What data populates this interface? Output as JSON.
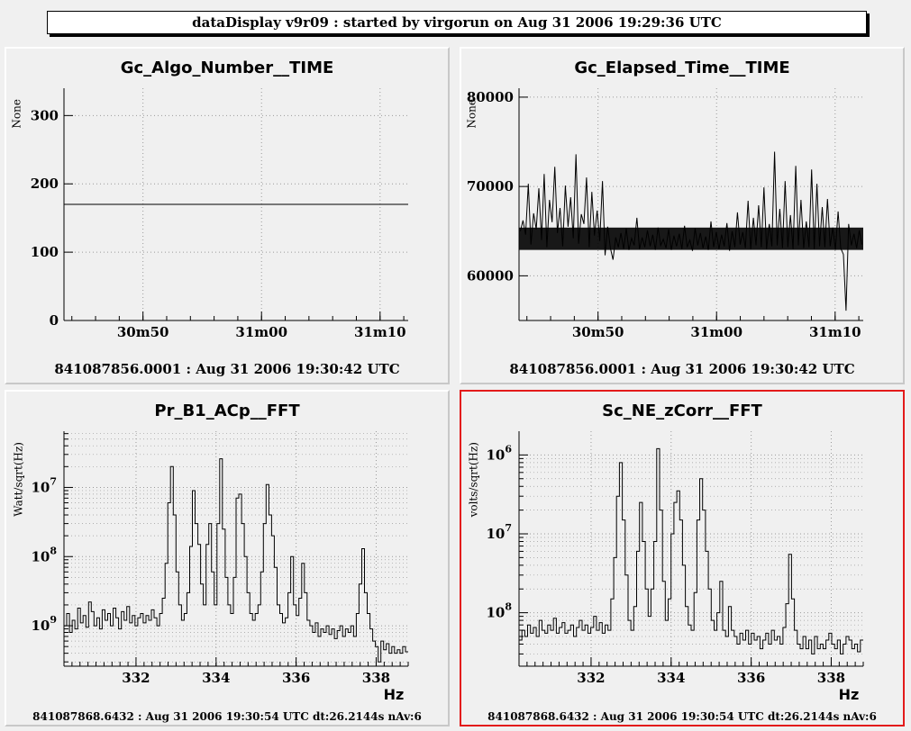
{
  "header": {
    "title": "dataDisplay v9r09 : started by virgorun on Aug 31 2006 19:29:36 UTC"
  },
  "colors": {
    "selected_border": "#e31b1b",
    "plot_line": "#000000",
    "grid": "#9a9a9a"
  },
  "chart_data": [
    {
      "id": "gc_algo",
      "type": "line",
      "title": "Gc_Algo_Number__TIME",
      "ylabel": "None",
      "xlabel": "",
      "x_ticks": [
        "30m50",
        "31m00",
        "31m10"
      ],
      "x_tick_pos": [
        0.2295,
        0.5739,
        0.9183
      ],
      "ylim": [
        0,
        340
      ],
      "y_ticks": [
        0,
        100,
        200,
        300
      ],
      "log_y": false,
      "grid": true,
      "series": [
        {
          "values": [
            170,
            170,
            170,
            170,
            170,
            170,
            170,
            170,
            170,
            170,
            170,
            170
          ]
        }
      ],
      "footer": "841087856.0001 : Aug 31 2006 19:30:42 UTC",
      "selected": false
    },
    {
      "id": "gc_elapsed",
      "type": "line",
      "title": "Gc_Elapsed_Time__TIME",
      "ylabel": "None",
      "xlabel": "",
      "x_ticks": [
        "30m50",
        "31m00",
        "31m10"
      ],
      "x_tick_pos": [
        0.2295,
        0.5739,
        0.9183
      ],
      "ylim": [
        55000,
        81000
      ],
      "y_ticks": [
        60000,
        70000,
        80000
      ],
      "y_tick_labels": [
        "60000",
        "70000",
        "80000"
      ],
      "log_y": false,
      "grid": true,
      "series": [
        {
          "name": "",
          "values": [
            65000,
            66200,
            64600,
            70300,
            63500,
            67000,
            65200,
            69800,
            64000,
            71400,
            63200,
            68500,
            66000,
            72200,
            64800,
            67600,
            63300,
            70100,
            65500,
            68800,
            64200,
            73600,
            63600,
            66900,
            65800,
            71000,
            63200,
            69400,
            64500,
            67300,
            63900,
            70600,
            62300,
            65500,
            63100,
            61800,
            64300,
            63200,
            64800,
            63000,
            65300,
            62900,
            64200,
            63400,
            66500,
            63000,
            64300,
            63200,
            65100,
            63300,
            64600,
            62900,
            65400,
            63400,
            64100,
            63100,
            65200,
            62900,
            64500,
            63300,
            64700,
            63000,
            65600,
            63200,
            64000,
            62800,
            65300,
            63400,
            64800,
            63100,
            64400,
            62900,
            66100,
            63200,
            64900,
            63000,
            64600,
            63300,
            65900,
            62800,
            65000,
            63200,
            67100,
            63500,
            64900,
            63100,
            68400,
            63000,
            66500,
            63400,
            67900,
            63200,
            69900,
            63000,
            65800,
            63300,
            73900,
            63400,
            67500,
            63100,
            70600,
            63200,
            66800,
            63000,
            72300,
            63400,
            68500,
            63100,
            66100,
            63200,
            71900,
            63000,
            70300,
            63300,
            67700,
            63200,
            68600,
            63300,
            65400,
            62900,
            67200,
            63100,
            62400,
            56100,
            65800,
            63400,
            64700,
            63100,
            65100,
            63500
          ]
        }
      ],
      "footer": "841087856.0001 : Aug 31 2006 19:30:42 UTC",
      "selected": false
    },
    {
      "id": "pr_b1",
      "type": "line",
      "title": "Pr_B1_ACp__FFT",
      "ylabel": "Watt/sqrt(Hz)",
      "xlabel": "Hz",
      "xlim": [
        330.2,
        338.8
      ],
      "x_ticks": [
        332,
        334,
        336,
        338
      ],
      "log_y": true,
      "ylim": [
        2.6e-10,
        6.5e-07
      ],
      "y_ticks": [
        1e-09,
        1e-08,
        1e-07
      ],
      "y_tick_labels": [
        {
          "base": "10",
          "exp": "9"
        },
        {
          "base": "10",
          "exp": "8"
        },
        {
          "base": "10",
          "exp": "7"
        }
      ],
      "grid": true,
      "series": [
        {
          "values": [
            1e-09,
            1.5e-09,
            8e-10,
            1.2e-09,
            9e-10,
            1.8e-09,
            1.1e-09,
            1.4e-09,
            9.5e-10,
            2.2e-09,
            1.6e-09,
            1e-09,
            1.3e-09,
            9e-10,
            1.7e-09,
            1.2e-09,
            1.5e-09,
            1e-09,
            1.8e-09,
            1.3e-09,
            9e-10,
            1.6e-09,
            1.2e-09,
            1.9e-09,
            1.1e-09,
            1.4e-09,
            1e-09,
            1.3e-09,
            1.5e-09,
            1.1e-09,
            1.4e-09,
            1.2e-09,
            1.7e-09,
            1.3e-09,
            1e-09,
            1.5e-09,
            2.5e-09,
            8e-09,
            6e-08,
            2e-07,
            4e-08,
            6e-09,
            2e-09,
            1.2e-09,
            1.5e-09,
            3e-09,
            1.4e-08,
            9e-08,
            3e-08,
            1.5e-08,
            4e-09,
            2e-09,
            1.5e-08,
            3e-08,
            6e-09,
            2e-09,
            3e-08,
            2.6e-07,
            2.5e-08,
            5e-09,
            2e-09,
            1.5e-09,
            5e-09,
            7e-08,
            8e-08,
            3e-08,
            1e-08,
            3e-09,
            1.5e-09,
            1.2e-09,
            1.5e-09,
            2e-09,
            6e-09,
            3e-08,
            1.1e-07,
            4e-08,
            2e-08,
            7e-09,
            2e-09,
            1.5e-09,
            1.1e-09,
            1.3e-09,
            3e-09,
            1e-08,
            2e-09,
            1.4e-09,
            2.5e-09,
            8e-09,
            3e-09,
            1.2e-09,
            1e-09,
            8e-10,
            1.1e-09,
            7e-10,
            9e-10,
            8e-10,
            1e-09,
            7.5e-10,
            9e-10,
            6.5e-10,
            8.5e-10,
            1e-09,
            7e-10,
            9e-10,
            8e-10,
            1e-09,
            7e-10,
            1.5e-09,
            4e-09,
            1.3e-08,
            3e-09,
            1.5e-09,
            9e-10,
            6e-10,
            5e-10,
            3e-10,
            6e-10,
            4.5e-10,
            5.5e-10,
            4e-10,
            5e-10,
            4e-10,
            4.5e-10,
            4e-10,
            5e-10,
            4.2e-10
          ]
        }
      ],
      "footer": "841087868.6432 : Aug 31 2006 19:30:54 UTC dt:26.2144s nAv:6",
      "selected": false
    },
    {
      "id": "sc_ne",
      "type": "line",
      "title": "Sc_NE_zCorr__FFT",
      "ylabel": "volts/sqrt(Hz)",
      "xlabel": "Hz",
      "xlim": [
        330.2,
        338.8
      ],
      "x_ticks": [
        332,
        334,
        336,
        338
      ],
      "log_y": true,
      "ylim": [
        2.1e-09,
        2e-06
      ],
      "y_ticks": [
        1e-08,
        1e-07,
        1e-06
      ],
      "y_tick_labels": [
        {
          "base": "10",
          "exp": "8"
        },
        {
          "base": "10",
          "exp": "7"
        },
        {
          "base": "10",
          "exp": "6"
        }
      ],
      "grid": true,
      "series": [
        {
          "values": [
            4.5e-09,
            6e-09,
            5e-09,
            7e-09,
            5.5e-09,
            6.5e-09,
            5e-09,
            8e-09,
            6e-09,
            5.5e-09,
            7e-09,
            6e-09,
            8.5e-09,
            5.5e-09,
            6.5e-09,
            7.5e-09,
            5.5e-09,
            6e-09,
            7e-09,
            5e-09,
            6.5e-09,
            8e-09,
            6e-09,
            7e-09,
            5.5e-09,
            6.5e-09,
            9e-09,
            6e-09,
            7.5e-09,
            5.5e-09,
            7e-09,
            6e-09,
            1.5e-08,
            5e-08,
            3e-07,
            8e-07,
            1.5e-07,
            3e-08,
            8e-09,
            6e-09,
            1.2e-08,
            6e-08,
            2.5e-07,
            8e-08,
            2e-08,
            9e-09,
            2e-08,
            8e-08,
            1.2e-06,
            2e-07,
            2.5e-08,
            8e-09,
            1.5e-08,
            1e-07,
            2.5e-07,
            3.5e-07,
            1.5e-07,
            4e-08,
            1.2e-08,
            7e-09,
            6e-09,
            1.8e-08,
            1.5e-07,
            5e-07,
            2e-07,
            6e-08,
            2e-08,
            8e-09,
            6e-09,
            1e-08,
            2.5e-08,
            6e-09,
            5e-09,
            1.2e-08,
            6e-09,
            5e-09,
            4e-09,
            5.5e-09,
            4.5e-09,
            6e-09,
            4e-09,
            5.5e-09,
            4.5e-09,
            5e-09,
            3.5e-09,
            4.5e-09,
            5.5e-09,
            4e-09,
            6e-09,
            4.5e-09,
            5e-09,
            4e-09,
            6.5e-09,
            1.3e-08,
            5.5e-08,
            1.5e-08,
            6e-09,
            4e-09,
            3.5e-09,
            5e-09,
            3.5e-09,
            4.5e-09,
            3e-09,
            5e-09,
            3.5e-09,
            4e-09,
            3.5e-09,
            4.5e-09,
            5.5e-09,
            4e-09,
            3.5e-09,
            4.5e-09,
            3e-09,
            4e-09,
            5e-09,
            4.5e-09,
            3.5e-09,
            4e-09,
            3.2e-09,
            4.5e-09
          ]
        }
      ],
      "footer": "841087868.6432 : Aug 31 2006 19:30:54 UTC dt:26.2144s nAv:6",
      "selected": true
    }
  ]
}
